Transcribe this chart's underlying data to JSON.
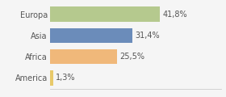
{
  "categories": [
    "Europa",
    "Asia",
    "Africa",
    "America"
  ],
  "values": [
    41.8,
    31.4,
    25.5,
    1.3
  ],
  "labels": [
    "41,8%",
    "31,4%",
    "25,5%",
    "1,3%"
  ],
  "bar_colors": [
    "#b5c98e",
    "#6b8cba",
    "#f0b87a",
    "#e8c96a"
  ],
  "background_color": "#f5f5f5",
  "xlim": [
    0,
    65
  ],
  "bar_height": 0.72,
  "label_fontsize": 7.0,
  "category_fontsize": 7.0,
  "text_color": "#555555"
}
